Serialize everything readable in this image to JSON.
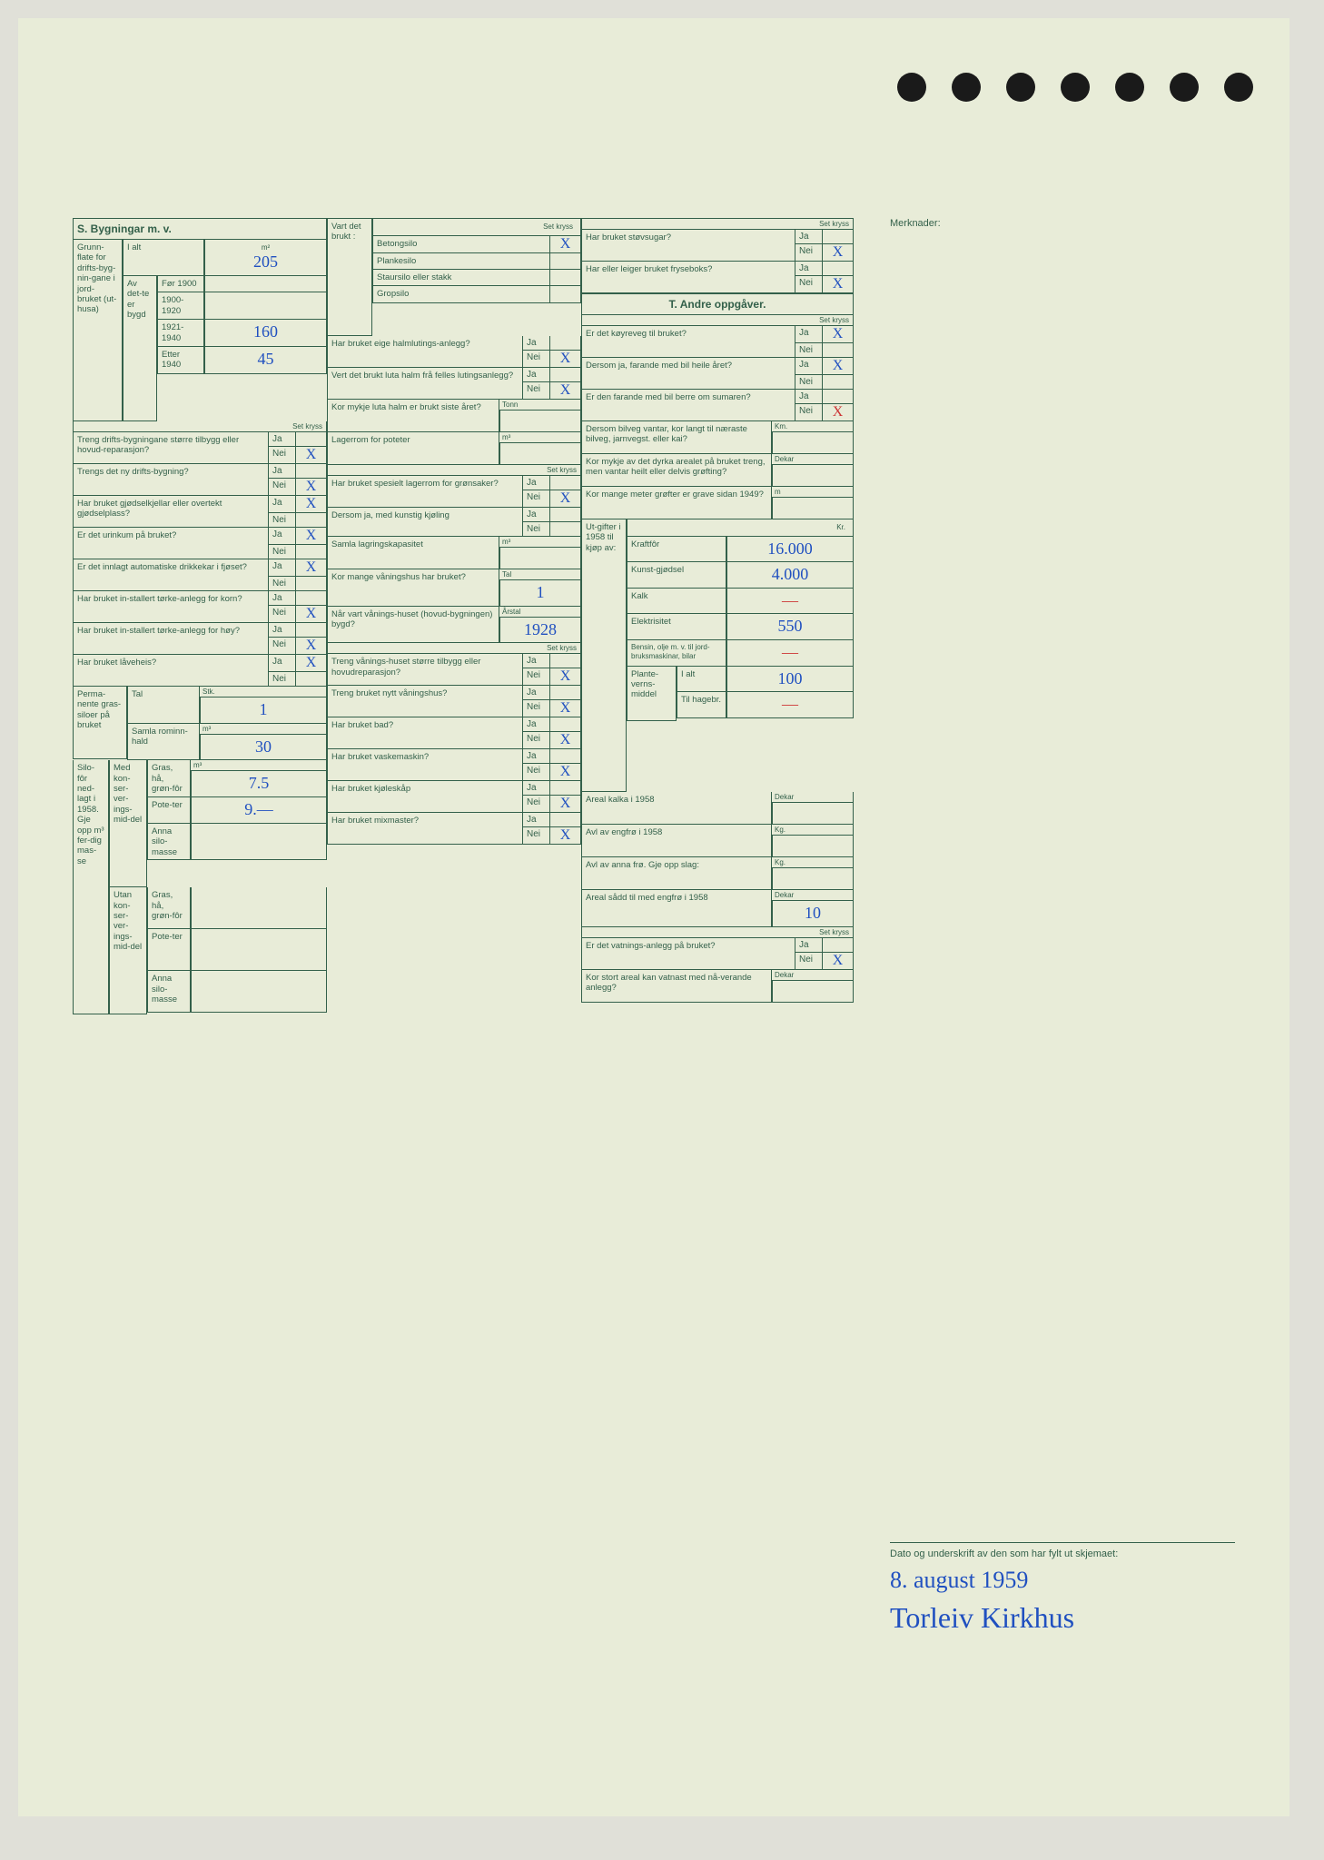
{
  "holes_count": 7,
  "sections": {
    "S": {
      "title": "S. Bygningar m. v."
    },
    "T": {
      "title": "T. Andre oppgåver."
    }
  },
  "merknader": {
    "label": "Merknader:"
  },
  "col1": {
    "grunnflate": {
      "label": "Grunn-flate for drifts-byg-nin-gane i jord-bruket (ut-husa)",
      "m2": "m²",
      "ialt": {
        "label": "I alt",
        "value": "205"
      },
      "avdette": {
        "label": "Av det-te er bygd",
        "for1900": {
          "label": "Før 1900",
          "value": ""
        },
        "r1900_1920": {
          "label": "1900-1920",
          "value": ""
        },
        "r1921_1940": {
          "label": "1921-1940",
          "value": "160"
        },
        "etter1940": {
          "label": "Etter 1940",
          "value": "45"
        }
      }
    },
    "set_kryss": "Set kryss",
    "q1": {
      "label": "Treng drifts-bygningane større tilbygg eller hovud-reparasjon?",
      "ja": "Ja",
      "nei": "Nei",
      "mark": "nei"
    },
    "q2": {
      "label": "Trengs det ny drifts-bygning?",
      "ja": "Ja",
      "nei": "Nei",
      "mark": "nei"
    },
    "q3": {
      "label": "Har bruket gjødselkjellar eller overtekt gjødselplass?",
      "ja": "Ja",
      "nei": "Nei",
      "mark": "ja"
    },
    "q4": {
      "label": "Er det urinkum på bruket?",
      "ja": "Ja",
      "nei": "Nei",
      "mark": "ja"
    },
    "q5": {
      "label": "Er det innlagt automatiske drikkekar i fjøset?",
      "ja": "Ja",
      "nei": "Nei",
      "mark": "ja"
    },
    "q6": {
      "label": "Har bruket in-stallert tørke-anlegg for korn?",
      "ja": "Ja",
      "nei": "Nei",
      "mark": "nei"
    },
    "q7": {
      "label": "Har bruket in-stallert tørke-anlegg for høy?",
      "ja": "Ja",
      "nei": "Nei",
      "mark": "nei"
    },
    "q8": {
      "label": "Har bruket låveheis?",
      "ja": "Ja",
      "nei": "Nei",
      "mark": "ja"
    },
    "permanente": {
      "label": "Perma-nente gras-siloer på bruket",
      "tal": {
        "label": "Tal",
        "unit": "Stk.",
        "value": "1"
      },
      "samla": {
        "label": "Samla rominn-hald",
        "unit": "m³",
        "value": "30"
      }
    },
    "silofor": {
      "label": "Silo-fôr ned-lagt i 1958. Gje opp m³ fer-dig mas-se",
      "med": {
        "label": "Med kon-ser-ver-ings-mid-del",
        "gras": {
          "label": "Gras, hå, grøn-fôr",
          "unit": "m³",
          "value": "7.5"
        },
        "poteter": {
          "label": "Pote-ter",
          "value": "9.—"
        },
        "anna": {
          "label": "Anna silo-masse",
          "value": ""
        }
      },
      "utan": {
        "label": "Utan kon-ser-ver-ings-mid-del",
        "gras": {
          "label": "Gras, hå, grøn-fôr",
          "value": ""
        },
        "poteter": {
          "label": "Pote-ter",
          "value": ""
        },
        "anna": {
          "label": "Anna silo-masse",
          "value": ""
        }
      }
    }
  },
  "col2": {
    "vart_brukt": {
      "label": "Vart det brukt :",
      "set_kryss": "Set kryss",
      "betongs": {
        "label": "Betongsilo",
        "mark": "X"
      },
      "planke": {
        "label": "Plankesilo",
        "mark": ""
      },
      "staur": {
        "label": "Staursilo eller stakk",
        "mark": ""
      },
      "grop": {
        "label": "Gropsilo",
        "mark": ""
      }
    },
    "q1": {
      "label": "Har bruket eige halmlutings-anlegg?",
      "ja": "Ja",
      "nei": "Nei",
      "mark": "nei"
    },
    "q2": {
      "label": "Vert det brukt luta halm frå felles lutingsanlegg?",
      "ja": "Ja",
      "nei": "Nei",
      "mark": "nei"
    },
    "q3": {
      "label": "Kor mykje luta halm er brukt siste året?",
      "unit": "Tonn",
      "value": ""
    },
    "q4": {
      "label": "Lagerrom for poteter",
      "unit": "m³",
      "value": ""
    },
    "q5": {
      "label": "Har bruket spesielt lagerrom for grønsaker?",
      "set_kryss": "Set kryss",
      "ja": "Ja",
      "nei": "Nei",
      "mark": "nei"
    },
    "q6": {
      "label": "Dersom ja, med kunstig kjøling",
      "ja": "Ja",
      "nei": "Nei",
      "mark": ""
    },
    "q7": {
      "label": "Samla lagringskapasitet",
      "unit": "m³",
      "value": ""
    },
    "q8": {
      "label": "Kor mange våningshus har bruket?",
      "unit": "Tal",
      "value": "1"
    },
    "q9": {
      "label": "Når vart vånings-huset (hovud-bygningen) bygd?",
      "unit": "Årstal",
      "value": "1928"
    },
    "q10": {
      "label": "Treng vånings-huset større tilbygg eller hovudreparasjon?",
      "set_kryss": "Set kryss",
      "ja": "Ja",
      "nei": "Nei",
      "mark": "nei"
    },
    "q11": {
      "label": "Treng bruket nytt våningshus?",
      "ja": "Ja",
      "nei": "Nei",
      "mark": "nei"
    },
    "q12": {
      "label": "Har bruket bad?",
      "ja": "Ja",
      "nei": "Nei",
      "mark": "nei"
    },
    "q13": {
      "label": "Har bruket vaskemaskin?",
      "ja": "Ja",
      "nei": "Nei",
      "mark": "nei"
    },
    "q14": {
      "label": "Har bruket kjøleskåp",
      "ja": "Ja",
      "nei": "Nei",
      "mark": "nei"
    },
    "q15": {
      "label": "Har bruket mixmaster?",
      "ja": "Ja",
      "nei": "Nei",
      "mark": "nei"
    }
  },
  "col3": {
    "set_kryss": "Set kryss",
    "q1": {
      "label": "Har bruket støvsugar?",
      "ja": "Ja",
      "nei": "Nei",
      "mark": "nei"
    },
    "q2": {
      "label": "Har eller leiger bruket fryseboks?",
      "ja": "Ja",
      "nei": "Nei",
      "mark": "nei"
    },
    "T_set_kryss": "Set kryss",
    "q3": {
      "label": "Er det køyreveg til bruket?",
      "ja": "Ja",
      "nei": "Nei",
      "mark": "ja"
    },
    "q4": {
      "label": "Dersom ja, farande med bil heile året?",
      "ja": "Ja",
      "nei": "Nei",
      "mark": "ja"
    },
    "q5": {
      "label": "Er den farande med bil berre om sumaren?",
      "ja": "Ja",
      "nei": "Nei",
      "mark": "nei_red"
    },
    "q6": {
      "label": "Dersom bilveg vantar, kor langt til næraste bilveg, jarnvegst. eller kai?",
      "unit": "Km.",
      "value": ""
    },
    "q7": {
      "label": "Kor mykje av det dyrka arealet på bruket treng, men vantar heilt eller delvis grøfting?",
      "unit": "Dekar",
      "value": ""
    },
    "q8": {
      "label": "Kor mange meter grøfter er grave sidan 1949?",
      "unit": "m",
      "value": ""
    },
    "utgifter": {
      "label": "Ut-gifter i 1958 til kjøp av:",
      "unit": "Kr.",
      "kraftfor": {
        "label": "Kraftfôr",
        "value": "16.000"
      },
      "kunstgjodsel": {
        "label": "Kunst-gjødsel",
        "value": "4.000"
      },
      "kalk": {
        "label": "Kalk",
        "value": "—"
      },
      "elektrisitet": {
        "label": "Elektrisitet",
        "value": "550"
      },
      "bensin": {
        "label": "Bensin, olje m. v. til jord-bruksmaskinar, bilar",
        "value": "—"
      },
      "plantevern": {
        "label": "Plante-verns-middel",
        "ialt": {
          "label": "I alt",
          "value": "100"
        },
        "hagebr": {
          "label": "Til hagebr.",
          "value": "—"
        }
      }
    },
    "q9": {
      "label": "Areal kalka i 1958",
      "unit": "Dekar",
      "value": ""
    },
    "q10": {
      "label": "Avl av engfrø i 1958",
      "unit": "Kg.",
      "value": ""
    },
    "q11": {
      "label": "Avl av anna frø. Gje opp slag:",
      "unit": "Kg.",
      "value": ""
    },
    "q12": {
      "label": "Areal sådd til med engfrø i 1958",
      "unit": "Dekar",
      "value": "10"
    },
    "q13": {
      "label": "Er det vatnings-anlegg på bruket?",
      "set_kryss": "Set kryss",
      "ja": "Ja",
      "nei": "Nei",
      "mark": "nei"
    },
    "q14": {
      "label": "Kor stort areal kan vatnast med nå-verande anlegg?",
      "unit": "Dekar",
      "value": ""
    }
  },
  "signature": {
    "label": "Dato og underskrift av den som har fylt ut skjemaet:",
    "date": "8. august 1959",
    "name": "Torleiv Kirkhus"
  }
}
